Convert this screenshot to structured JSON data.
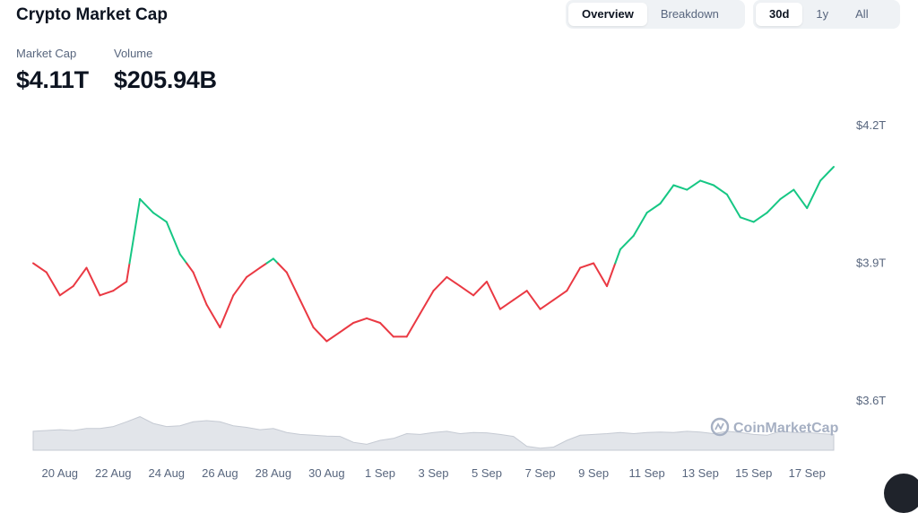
{
  "header": {
    "title": "Crypto Market Cap",
    "market_cap_label": "Market Cap",
    "market_cap_value": "$4.11T",
    "volume_label": "Volume",
    "volume_value": "$205.94B"
  },
  "view_tabs": [
    {
      "label": "Overview",
      "active": true
    },
    {
      "label": "Breakdown",
      "active": false
    }
  ],
  "range_tabs": [
    {
      "label": "30d",
      "active": true
    },
    {
      "label": "1y",
      "active": false
    },
    {
      "label": "All",
      "active": false
    }
  ],
  "watermark": "CoinMarketCap",
  "colors": {
    "up": "#16c784",
    "down": "#ea3943",
    "volume_fill": "#e2e5ea",
    "volume_line": "#c5cad3",
    "text_secondary": "#58667e"
  },
  "chart_data": {
    "type": "line",
    "series": [
      {
        "x": [
          "2025-08-19",
          "2025-08-19T12",
          "2025-08-20",
          "2025-08-20T12",
          "2025-08-21",
          "2025-08-21T12",
          "2025-08-22",
          "2025-08-22T12",
          "2025-08-23",
          "2025-08-23T12",
          "2025-08-24",
          "2025-08-24T12",
          "2025-08-25",
          "2025-08-25T12",
          "2025-08-26",
          "2025-08-26T12",
          "2025-08-27",
          "2025-08-27T12",
          "2025-08-28",
          "2025-08-28T12",
          "2025-08-29",
          "2025-08-29T12",
          "2025-08-30",
          "2025-08-30T12",
          "2025-08-31",
          "2025-08-31T12",
          "2025-09-01",
          "2025-09-01T12",
          "2025-09-02",
          "2025-09-02T12",
          "2025-09-03",
          "2025-09-03T12",
          "2025-09-04",
          "2025-09-04T12",
          "2025-09-05",
          "2025-09-05T12",
          "2025-09-06",
          "2025-09-06T12",
          "2025-09-07",
          "2025-09-07T12",
          "2025-09-08",
          "2025-09-08T12",
          "2025-09-09",
          "2025-09-09T12",
          "2025-09-10",
          "2025-09-10T12",
          "2025-09-11",
          "2025-09-11T12",
          "2025-09-12",
          "2025-09-12T12",
          "2025-09-13",
          "2025-09-13T12",
          "2025-09-14",
          "2025-09-14T12",
          "2025-09-15",
          "2025-09-15T12",
          "2025-09-16",
          "2025-09-16T12",
          "2025-09-17",
          "2025-09-17T12",
          "2025-09-18"
        ],
        "values": [
          3.9,
          3.88,
          3.83,
          3.85,
          3.89,
          3.83,
          3.84,
          3.86,
          4.04,
          4.01,
          3.99,
          3.92,
          3.88,
          3.81,
          3.76,
          3.83,
          3.87,
          3.89,
          3.91,
          3.88,
          3.82,
          3.76,
          3.73,
          3.75,
          3.77,
          3.78,
          3.77,
          3.74,
          3.74,
          3.79,
          3.84,
          3.87,
          3.85,
          3.83,
          3.86,
          3.8,
          3.82,
          3.84,
          3.8,
          3.82,
          3.84,
          3.89,
          3.9,
          3.85,
          3.93,
          3.96,
          4.01,
          4.03,
          4.07,
          4.06,
          4.08,
          4.07,
          4.05,
          4.0,
          3.99,
          4.01,
          4.04,
          4.06,
          4.02,
          4.08,
          4.11
        ]
      }
    ],
    "volume_relative": [
      0.48,
      0.5,
      0.52,
      0.5,
      0.55,
      0.55,
      0.6,
      0.72,
      0.85,
      0.68,
      0.6,
      0.62,
      0.72,
      0.75,
      0.72,
      0.62,
      0.58,
      0.52,
      0.55,
      0.45,
      0.4,
      0.38,
      0.36,
      0.35,
      0.2,
      0.15,
      0.25,
      0.3,
      0.42,
      0.4,
      0.45,
      0.48,
      0.42,
      0.45,
      0.44,
      0.4,
      0.35,
      0.1,
      0.05,
      0.08,
      0.25,
      0.38,
      0.4,
      0.42,
      0.45,
      0.42,
      0.45,
      0.46,
      0.45,
      0.48,
      0.46,
      0.42,
      0.48,
      0.45,
      0.4,
      0.38,
      0.48,
      0.45,
      0.45,
      0.42,
      0.4
    ],
    "y_ticks": [
      {
        "value": 4.2,
        "label": "$4.2T"
      },
      {
        "value": 3.9,
        "label": "$3.9T"
      },
      {
        "value": 3.6,
        "label": "$3.6T"
      }
    ],
    "x_ticks": [
      {
        "index": 2,
        "label": "20 Aug"
      },
      {
        "index": 6,
        "label": "22 Aug"
      },
      {
        "index": 10,
        "label": "24 Aug"
      },
      {
        "index": 14,
        "label": "26 Aug"
      },
      {
        "index": 18,
        "label": "28 Aug"
      },
      {
        "index": 22,
        "label": "30 Aug"
      },
      {
        "index": 26,
        "label": "1 Sep"
      },
      {
        "index": 30,
        "label": "3 Sep"
      },
      {
        "index": 34,
        "label": "5 Sep"
      },
      {
        "index": 38,
        "label": "7 Sep"
      },
      {
        "index": 42,
        "label": "9 Sep"
      },
      {
        "index": 46,
        "label": "11 Sep"
      },
      {
        "index": 50,
        "label": "13 Sep"
      },
      {
        "index": 54,
        "label": "15 Sep"
      },
      {
        "index": 58,
        "label": "17 Sep"
      }
    ],
    "baseline": 3.9,
    "ylim": [
      3.6,
      4.2
    ],
    "grid": false
  }
}
